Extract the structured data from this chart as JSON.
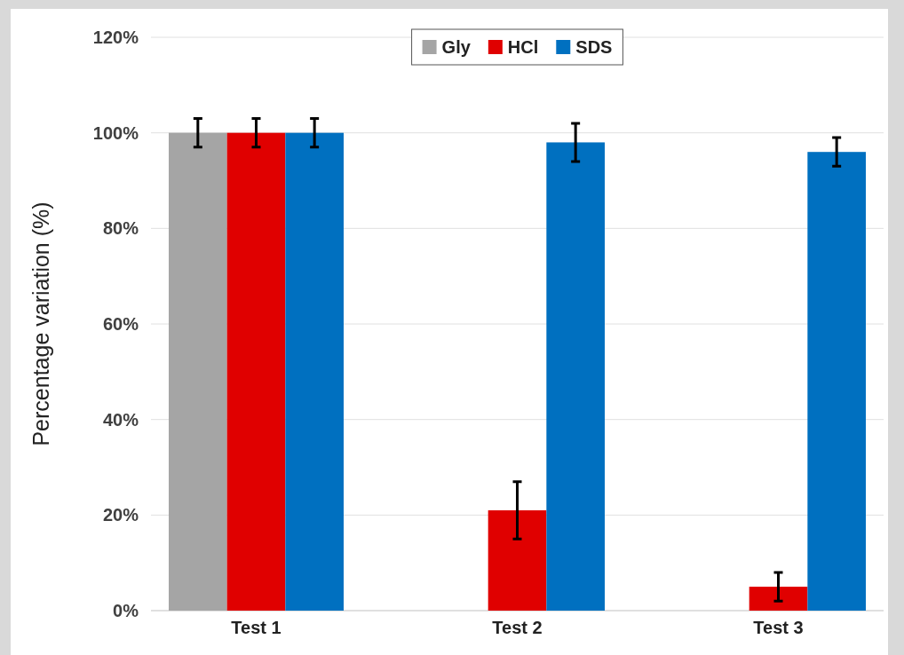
{
  "chart_data": {
    "type": "bar",
    "ylabel": "Percentage variation (%)",
    "categories": [
      "Test 1",
      "Test 2",
      "Test 3"
    ],
    "series": [
      {
        "name": "Gly",
        "color": "#a5a5a5",
        "values": [
          100,
          null,
          null
        ],
        "errors": [
          3,
          null,
          null
        ]
      },
      {
        "name": "HCl",
        "color": "#e00000",
        "values": [
          100,
          21,
          5
        ],
        "errors": [
          3,
          6,
          3
        ]
      },
      {
        "name": "SDS",
        "color": "#0070c0",
        "values": [
          100,
          98,
          96
        ],
        "errors": [
          3,
          4,
          3
        ]
      }
    ],
    "ylim": [
      0,
      120
    ],
    "yticks": [
      {
        "value": 0,
        "label": "0%"
      },
      {
        "value": 20,
        "label": "20%"
      },
      {
        "value": 40,
        "label": "40%"
      },
      {
        "value": 60,
        "label": "60%"
      },
      {
        "value": 80,
        "label": "80%"
      },
      {
        "value": 100,
        "label": "100%"
      },
      {
        "value": 120,
        "label": "120%"
      }
    ],
    "grid": "y",
    "legend": "top"
  }
}
